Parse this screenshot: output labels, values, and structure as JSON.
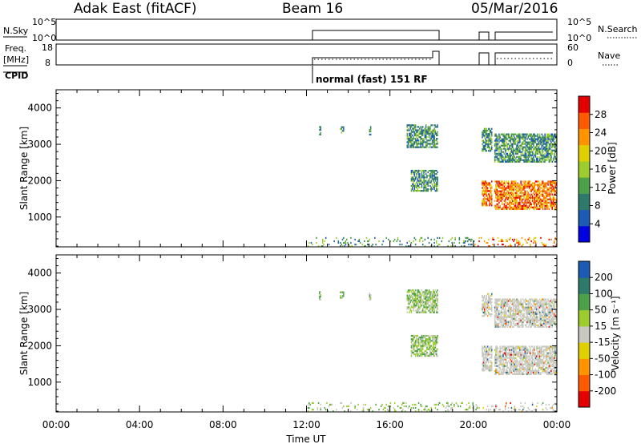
{
  "header": {
    "station": "Adak East (fitACF)",
    "beam": "Beam 16",
    "date": "05/Mar/2016"
  },
  "top_panels": {
    "nsky_label": "N.Sky",
    "nsky_ticks": [
      "10^5",
      "10^0"
    ],
    "nsearch_label": "N.Search",
    "nsearch_ticks": [
      "10^5",
      "10^0"
    ],
    "freq_label": "Freq.",
    "freq_unit": "[MHz]",
    "freq_ticks": [
      "18",
      "8"
    ],
    "nave_label": "Nave",
    "nave_ticks": [
      "60",
      "0"
    ],
    "cpid_label": "CPID",
    "cpid_value": "normal (fast) 151 RF"
  },
  "chart_data": [
    {
      "type": "heatmap",
      "panel": "power",
      "xlabel": "",
      "ylabel": "Slant Range [km]",
      "xlim": [
        0,
        24
      ],
      "ylim": [
        180,
        4500
      ],
      "yticks": [
        "1000",
        "2000",
        "3000",
        "4000"
      ],
      "colorbar_label": "Power [dB]",
      "colorbar_ticks": [
        "28",
        "24",
        "20",
        "16",
        "12",
        "8",
        "4"
      ],
      "colors": [
        "#0000e0",
        "#1c5ab4",
        "#2e7a6a",
        "#4fa04a",
        "#9ccc2e",
        "#e0d000",
        "#ff9400",
        "#ff5a00",
        "#e40000"
      ],
      "echo_regions": [
        {
          "t": [
            12.6,
            12.7
          ],
          "r": [
            3250,
            3500
          ]
        },
        {
          "t": [
            13.6,
            13.8
          ],
          "r": [
            3300,
            3500
          ]
        },
        {
          "t": [
            15.0,
            15.1
          ],
          "r": [
            3250,
            3500
          ]
        },
        {
          "t": [
            16.8,
            18.3
          ],
          "r": [
            2900,
            3550
          ]
        },
        {
          "t": [
            17.0,
            18.3
          ],
          "r": [
            1700,
            2300
          ]
        },
        {
          "t": [
            20.4,
            20.9
          ],
          "r": [
            2800,
            3450
          ]
        },
        {
          "t": [
            21.0,
            24.0
          ],
          "r": [
            2500,
            3300
          ]
        },
        {
          "t": [
            20.4,
            20.9
          ],
          "r": [
            1300,
            2000
          ]
        },
        {
          "t": [
            21.0,
            24.0
          ],
          "r": [
            1200,
            2000
          ]
        },
        {
          "t": [
            12.0,
            24.0
          ],
          "r": [
            180,
            450
          ]
        }
      ]
    },
    {
      "type": "heatmap",
      "panel": "velocity",
      "xlabel": "Time UT",
      "ylabel": "Slant Range [km]",
      "xlim": [
        0,
        24
      ],
      "ylim": [
        180,
        4500
      ],
      "xticks": [
        "00:00",
        "04:00",
        "08:00",
        "12:00",
        "16:00",
        "20:00",
        "00:00"
      ],
      "yticks": [
        "1000",
        "2000",
        "3000",
        "4000"
      ],
      "colorbar_label": "Velocity [m s⁻¹]",
      "colorbar_ticks": [
        "200",
        "100",
        "50",
        "15",
        "-15",
        "-50",
        "-100",
        "-200"
      ],
      "colors": [
        "#e40000",
        "#ff5a00",
        "#ff9400",
        "#e0d000",
        "#c8c8c0",
        "#9ccc2e",
        "#4fa04a",
        "#2e7a6a",
        "#1c5ab4"
      ],
      "echo_regions": [
        {
          "t": [
            12.6,
            12.7
          ],
          "r": [
            3250,
            3500
          ]
        },
        {
          "t": [
            13.6,
            13.8
          ],
          "r": [
            3300,
            3500
          ]
        },
        {
          "t": [
            15.0,
            15.1
          ],
          "r": [
            3250,
            3500
          ]
        },
        {
          "t": [
            16.8,
            18.3
          ],
          "r": [
            2900,
            3550
          ]
        },
        {
          "t": [
            17.0,
            18.3
          ],
          "r": [
            1700,
            2300
          ]
        },
        {
          "t": [
            20.4,
            20.9
          ],
          "r": [
            2800,
            3450
          ]
        },
        {
          "t": [
            21.0,
            24.0
          ],
          "r": [
            2500,
            3300
          ]
        },
        {
          "t": [
            20.4,
            20.9
          ],
          "r": [
            1300,
            2000
          ]
        },
        {
          "t": [
            21.0,
            24.0
          ],
          "r": [
            1200,
            2000
          ]
        },
        {
          "t": [
            12.0,
            24.0
          ],
          "r": [
            180,
            450
          ]
        }
      ]
    }
  ]
}
